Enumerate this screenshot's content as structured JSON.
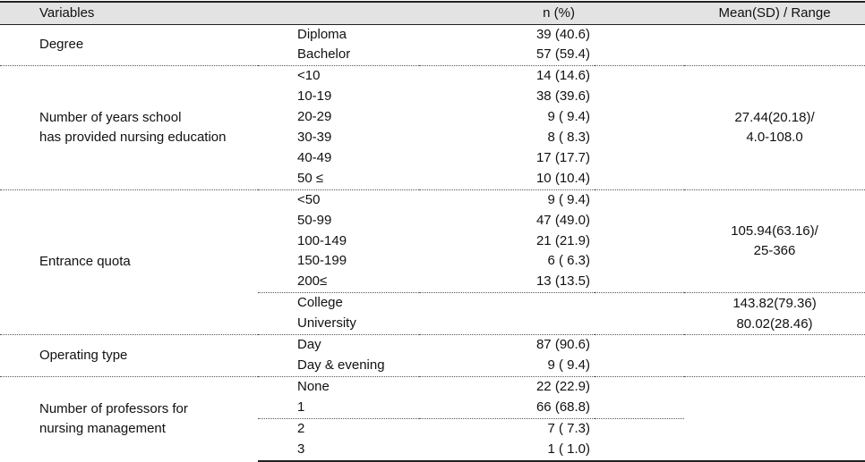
{
  "header": {
    "variables": "Variables",
    "n_percent": "n (%)",
    "mean_range": "Mean(SD) / Range"
  },
  "groups": {
    "degree": {
      "label": "Degree",
      "rows": [
        {
          "sub": "Diploma",
          "n": "39 (40.6)"
        },
        {
          "sub": "Bachelor",
          "n": "57 (59.4)"
        }
      ]
    },
    "years": {
      "label_line1": "Number of years school",
      "label_line2": "has provided nursing education",
      "mean_line1": "27.44(20.18)/",
      "mean_line2": "4.0-108.0",
      "rows": [
        {
          "sub": "<10",
          "n": "14 (14.6)"
        },
        {
          "sub": "10-19",
          "n": "38 (39.6)"
        },
        {
          "sub": "20-29",
          "n": "9 ( 9.4)"
        },
        {
          "sub": "30-39",
          "n": "8 ( 8.3)"
        },
        {
          "sub": "40-49",
          "n": "17 (17.7)"
        },
        {
          "sub": "50 ≤",
          "n": "10 (10.4)"
        }
      ]
    },
    "quota": {
      "label": "Entrance quota",
      "mean_line1": "105.94(63.16)/",
      "mean_line2": "25-366",
      "rows": [
        {
          "sub": "<50",
          "n": "9 ( 9.4)"
        },
        {
          "sub": "50-99",
          "n": "47 (49.0)"
        },
        {
          "sub": "100-149",
          "n": "21 (21.9)"
        },
        {
          "sub": "150-199",
          "n": "6 ( 6.3)"
        },
        {
          "sub": "200≤",
          "n": "13 (13.5)"
        }
      ],
      "school_rows": [
        {
          "sub": "College",
          "mean": "143.82(79.36)"
        },
        {
          "sub": "University",
          "mean": "80.02(28.46)"
        }
      ]
    },
    "operating": {
      "label": "Operating type",
      "rows": [
        {
          "sub": "Day",
          "n": "87 (90.6)"
        },
        {
          "sub": "Day & evening",
          "n": "9 ( 9.4)"
        }
      ]
    },
    "professors": {
      "label_line1": "Number of professors for",
      "label_line2": "nursing management",
      "rows": [
        {
          "sub": "None",
          "n": "22 (22.9)"
        },
        {
          "sub": "1",
          "n": "66 (68.8)"
        },
        {
          "sub": "2",
          "n": "7 ( 7.3)"
        },
        {
          "sub": "3",
          "n": "1 ( 1.0)"
        }
      ]
    }
  }
}
